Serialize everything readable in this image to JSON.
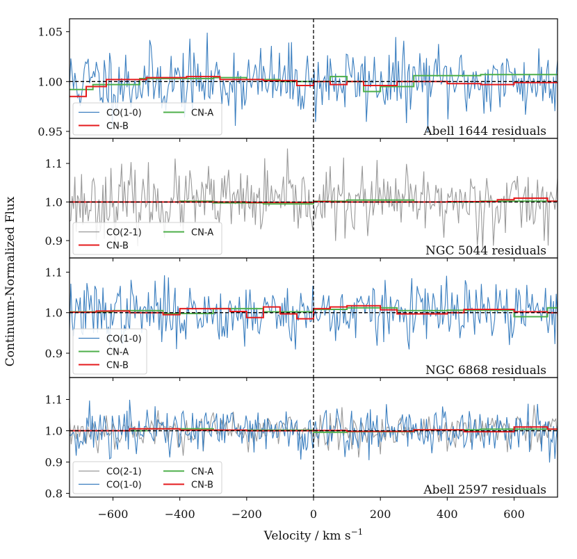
{
  "chart_data": {
    "type": "line",
    "xlabel": "Velocity / km s",
    "xlabel_superscript": "−1",
    "ylabel": "Continuum-Normalized Flux",
    "xlim": [
      -730,
      730
    ],
    "xticks": [
      -600,
      -400,
      -200,
      0,
      200,
      400,
      600
    ],
    "xtick_labels": [
      "−600",
      "−400",
      "−200",
      "0",
      "200",
      "400",
      "600"
    ],
    "colors": {
      "CO(1-0)": "#3a7ebf",
      "CO(2-1)": "#999999",
      "CN-A": "#4daf4a",
      "CN-B": "#e41a1c",
      "reference": "#000000"
    },
    "panels": [
      {
        "label": "Abell 1644 residuals",
        "ylim": [
          0.943,
          1.063
        ],
        "yticks": [
          0.95,
          1.0,
          1.05
        ],
        "ytick_labels": [
          "0.95",
          "1.00",
          "1.05"
        ],
        "noise": [
          {
            "name": "CO(1-0)",
            "sigma": 0.018,
            "seed": 11,
            "step": 4
          }
        ],
        "steps": [
          {
            "name": "CN-A",
            "x": [
              -730,
              -660,
              -520,
              -420,
              -300,
              -200,
              -100,
              0,
              50,
              100,
              150,
              200,
              300,
              400,
              500,
              600,
              730
            ],
            "y": [
              0.992,
              0.997,
              1.003,
              1.003,
              1.004,
              1.002,
              1.0,
              1.0,
              1.005,
              1.0,
              0.99,
              0.995,
              1.006,
              1.006,
              1.007,
              1.007,
              1.007
            ]
          },
          {
            "name": "CN-B",
            "x": [
              -730,
              -680,
              -620,
              -500,
              -380,
              -280,
              -150,
              -50,
              0,
              50,
              100,
              150,
              250,
              300,
              400,
              500,
              600,
              730
            ],
            "y": [
              0.985,
              0.995,
              1.002,
              1.004,
              1.005,
              1.002,
              1.001,
              0.996,
              1.0,
              0.997,
              1.0,
              0.996,
              1.0,
              1.0,
              0.998,
              0.997,
              0.999,
              0.999
            ]
          }
        ],
        "legend": {
          "order": [
            "CO(1-0)",
            "CN-B",
            "CN-A"
          ],
          "layout": "two-column"
        }
      },
      {
        "label": "NGC 5044 residuals",
        "ylim": [
          0.855,
          1.165
        ],
        "yticks": [
          0.9,
          1.0,
          1.1
        ],
        "ytick_labels": [
          "0.9",
          "1.0",
          "1.1"
        ],
        "noise": [
          {
            "name": "CO(2-1)",
            "sigma": 0.045,
            "seed": 23,
            "step": 4
          }
        ],
        "steps": [
          {
            "name": "CN-A",
            "x": [
              -730,
              -400,
              -300,
              -150,
              0,
              100,
              300,
              500,
              730
            ],
            "y": [
              1.0,
              1.002,
              0.998,
              0.995,
              1.002,
              1.005,
              1.0,
              1.002,
              1.001
            ]
          },
          {
            "name": "CN-B",
            "x": [
              -730,
              -500,
              -200,
              0,
              50,
              200,
              400,
              550,
              600,
              700,
              730
            ],
            "y": [
              1.0,
              1.0,
              0.999,
              1.001,
              1.0,
              1.0,
              1.001,
              1.006,
              1.01,
              1.002,
              1.002
            ]
          }
        ],
        "legend": {
          "order": [
            "CO(2-1)",
            "CN-B",
            "CN-A"
          ],
          "layout": "two-column"
        }
      },
      {
        "label": "NGC 6868 residuals",
        "ylim": [
          0.84,
          1.135
        ],
        "yticks": [
          0.9,
          1.0,
          1.1
        ],
        "ytick_labels": [
          "0.9",
          "1.0",
          "1.1"
        ],
        "noise": [
          {
            "name": "CO(1-0)",
            "sigma": 0.038,
            "seed": 37,
            "step": 4
          }
        ],
        "steps": [
          {
            "name": "CN-A",
            "x": [
              -730,
              -600,
              -450,
              -300,
              -150,
              0,
              100,
              250,
              400,
              600,
              700,
              730
            ],
            "y": [
              1.002,
              1.005,
              0.998,
              1.01,
              1.002,
              1.008,
              1.012,
              1.005,
              1.006,
              0.99,
              1.012,
              1.012
            ]
          },
          {
            "name": "CN-B",
            "x": [
              -730,
              -650,
              -550,
              -450,
              -400,
              -250,
              -200,
              -150,
              -100,
              -50,
              0,
              50,
              100,
              200,
              250,
              400,
              450,
              600,
              700,
              730
            ],
            "y": [
              1.001,
              1.004,
              1.0,
              0.995,
              1.01,
              1.003,
              0.988,
              1.014,
              0.997,
              0.985,
              1.01,
              1.014,
              1.017,
              1.007,
              0.997,
              1.0,
              1.008,
              1.002,
              1.0,
              1.0
            ]
          }
        ],
        "legend": {
          "order": [
            "CO(1-0)",
            "CN-A",
            "CN-B"
          ],
          "layout": "one-column"
        }
      },
      {
        "label": "Abell 2597 residuals",
        "ylim": [
          0.788,
          1.17
        ],
        "yticks": [
          0.8,
          0.9,
          1.0,
          1.1
        ],
        "ytick_labels": [
          "0.8",
          "0.9",
          "1.0",
          "1.1"
        ],
        "noise": [
          {
            "name": "CO(2-1)",
            "sigma": 0.03,
            "seed": 53,
            "step": 5
          },
          {
            "name": "CO(1-0)",
            "sigma": 0.042,
            "seed": 71,
            "step": 4
          }
        ],
        "steps": [
          {
            "name": "CN-A",
            "x": [
              -730,
              -500,
              -300,
              0,
              100,
              300,
              500,
              730
            ],
            "y": [
              1.0,
              1.006,
              1.002,
              0.995,
              0.997,
              1.003,
              1.005,
              1.005
            ]
          },
          {
            "name": "CN-B",
            "x": [
              -730,
              -550,
              -400,
              -200,
              0,
              100,
              300,
              450,
              600,
              700,
              730
            ],
            "y": [
              1.0,
              1.006,
              1.002,
              1.0,
              1.001,
              0.998,
              1.003,
              0.997,
              1.012,
              1.005,
              1.005
            ]
          }
        ],
        "legend": {
          "order": [
            "CO(2-1)",
            "CO(1-0)",
            "CN-A",
            "CN-B"
          ],
          "layout": "two-column"
        }
      }
    ]
  }
}
